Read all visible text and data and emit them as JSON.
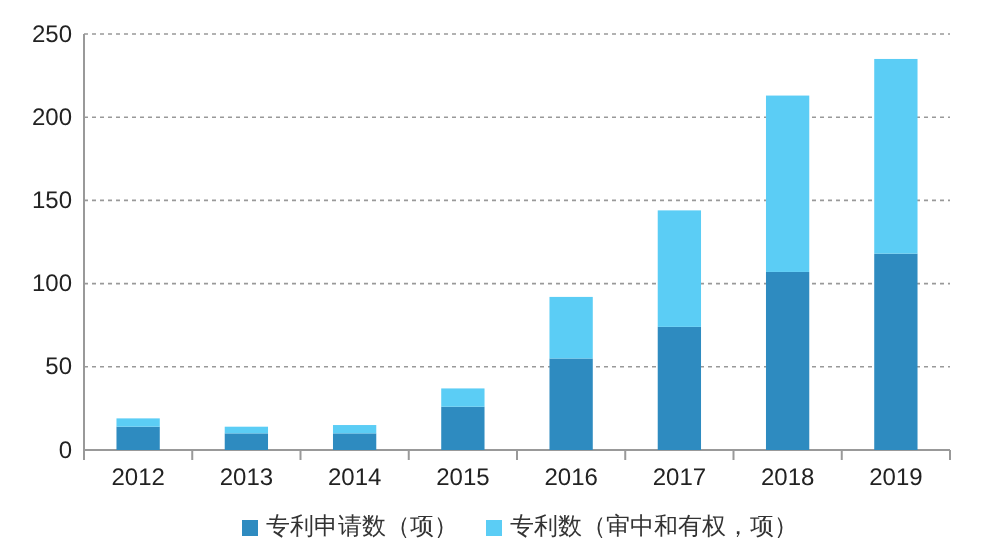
{
  "chart_data": {
    "type": "bar",
    "stacked": true,
    "categories": [
      "2012",
      "2013",
      "2014",
      "2015",
      "2016",
      "2017",
      "2018",
      "2019"
    ],
    "series": [
      {
        "name": "专利申请数（项）",
        "color": "#2e8bc0",
        "values": [
          14,
          10,
          10,
          26,
          55,
          74,
          107,
          118
        ]
      },
      {
        "name": "专利数（审中和有权，项）",
        "color": "#5bcdf5",
        "values": [
          5,
          4,
          5,
          11,
          37,
          70,
          106,
          117
        ]
      }
    ],
    "ylim": [
      0,
      250
    ],
    "yticks": [
      0,
      50,
      100,
      150,
      200,
      250
    ],
    "grid": "y",
    "legend": "bottom"
  }
}
